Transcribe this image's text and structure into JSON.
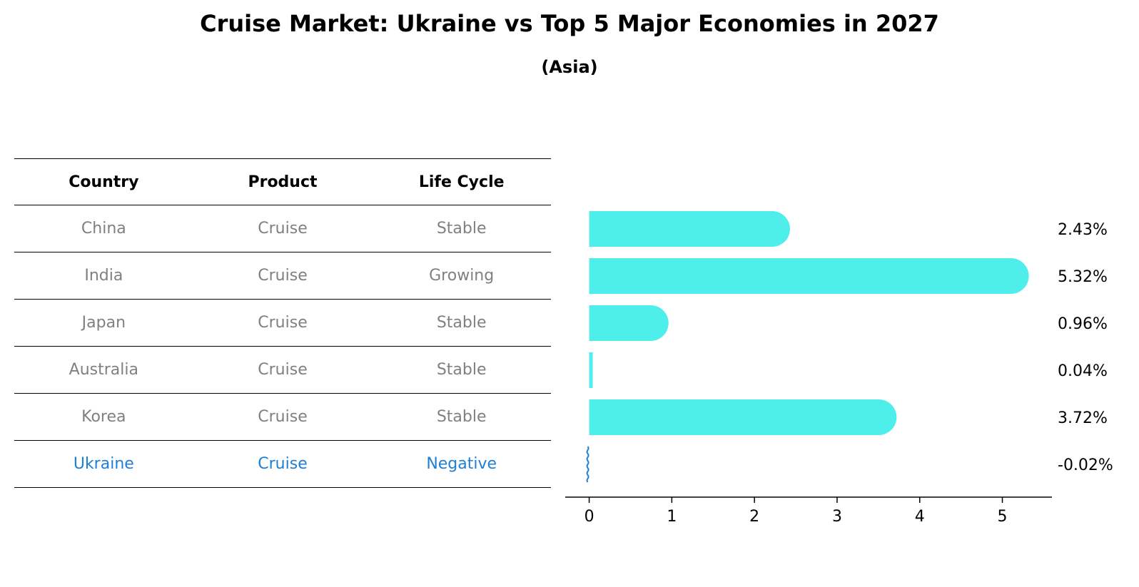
{
  "title": "Cruise Market: Ukraine vs Top 5 Major Economies in 2027",
  "subtitle": "(Asia)",
  "table": {
    "headers": [
      "Country",
      "Product",
      "Life Cycle"
    ],
    "rows": [
      [
        "China",
        "Cruise",
        "Stable"
      ],
      [
        "India",
        "Cruise",
        "Growing"
      ],
      [
        "Japan",
        "Cruise",
        "Stable"
      ],
      [
        "Australia",
        "Cruise",
        "Stable"
      ],
      [
        "Korea",
        "Cruise",
        "Stable"
      ],
      [
        "Ukraine",
        "Cruise",
        "Negative"
      ]
    ],
    "highlight_row": 5,
    "text_color": "#808080",
    "highlight_color": "#1f7fd4"
  },
  "chart_data": {
    "type": "bar",
    "orientation": "horizontal",
    "categories": [
      "China",
      "India",
      "Japan",
      "Australia",
      "Korea",
      "Ukraine"
    ],
    "values": [
      2.43,
      5.32,
      0.96,
      0.04,
      3.72,
      -0.02
    ],
    "labels": [
      "2.43%",
      "5.32%",
      "0.96%",
      "0.04%",
      "3.72%",
      "-0.02%"
    ],
    "xticks": [
      0,
      1,
      2,
      3,
      4,
      5
    ],
    "xlim": [
      -0.29,
      5.6
    ],
    "bar_color": "#4eeeea",
    "negative_color": "#1f7fd4",
    "grid": false
  }
}
